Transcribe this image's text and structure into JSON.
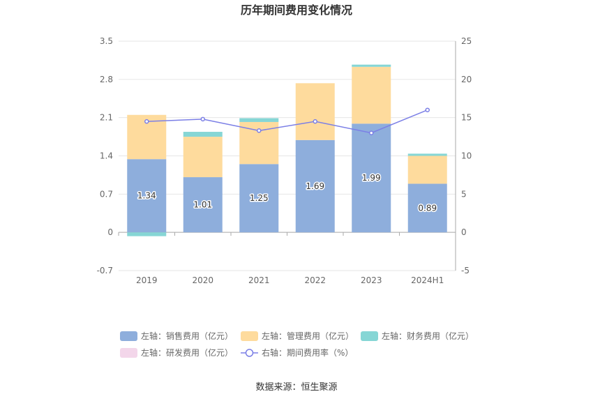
{
  "chart_data": {
    "type": "bar",
    "title": "历年期间费用变化情况",
    "categories": [
      "2019",
      "2020",
      "2021",
      "2022",
      "2023",
      "2024H1"
    ],
    "left_axis": {
      "ylim": [
        -0.7,
        3.5
      ],
      "ticks": [
        "3.5",
        "2.8",
        "2.1",
        "1.4",
        "0.7",
        "0",
        "-0.7"
      ],
      "tick_values": [
        3.5,
        2.8,
        2.1,
        1.4,
        0.7,
        0,
        -0.7
      ]
    },
    "right_axis": {
      "ylim": [
        -5,
        25
      ],
      "ticks": [
        "25",
        "20",
        "15",
        "10",
        "5",
        "0",
        "-5"
      ],
      "tick_values": [
        25,
        20,
        15,
        10,
        5,
        0,
        -5
      ]
    },
    "series": [
      {
        "name": "左轴：销售费用（亿元）",
        "color": "#8eaedc",
        "values": [
          1.34,
          1.01,
          1.25,
          1.69,
          1.99,
          0.89
        ],
        "labels": [
          "1.34",
          "1.01",
          "1.25",
          "1.69",
          "1.99",
          "0.89"
        ]
      },
      {
        "name": "左轴：管理费用（亿元）",
        "color": "#fedb9d",
        "values": [
          0.81,
          0.74,
          0.77,
          1.04,
          1.04,
          0.51
        ]
      },
      {
        "name": "左轴：财务费用（亿元）",
        "color": "#86d6d5",
        "values": [
          -0.07,
          0.09,
          0.07,
          0.0,
          0.04,
          0.04
        ]
      },
      {
        "name": "左轴：研发费用（亿元）",
        "color": "#f3d6ea",
        "values": [
          0,
          0,
          0,
          0,
          0,
          0
        ]
      },
      {
        "name": "右轴：期间费用率（%）",
        "color": "#7b7fe6",
        "type": "line",
        "values": [
          14.5,
          14.8,
          13.3,
          14.5,
          13.0,
          16.0
        ]
      }
    ],
    "legend_position": "bottom",
    "grid": true
  },
  "source": "数据来源：恒生聚源"
}
